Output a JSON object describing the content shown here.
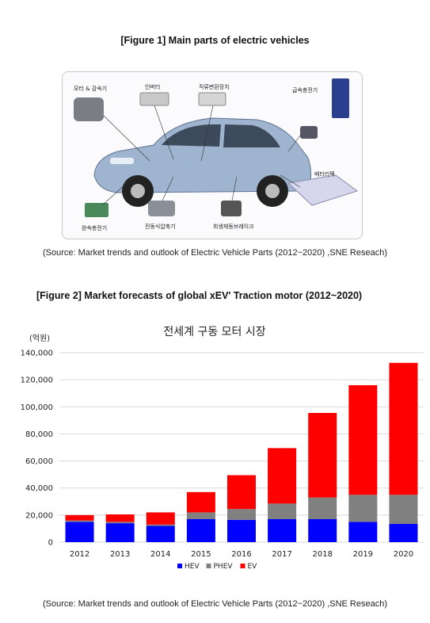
{
  "figure1": {
    "title": "[Figure 1] Main parts of electric vehicles",
    "labels": {
      "motor": "모터 & 감속기",
      "inverter": "인버터",
      "dc_converter": "직류변환장치",
      "fast_charger": "급속충전기",
      "battery_pack": "배터리팩",
      "slow_charger": "완속충전기",
      "compressor": "전동식압축기",
      "regen_brake": "회생제동브레이크"
    },
    "source": "(Source: Market trends and outlook of Electric Vehicle Parts (2012~2020) ,SNE Reseach)"
  },
  "figure2": {
    "title": "[Figure 2] Market forecasts of global xEV' Traction motor (2012~2020)",
    "source": "(Source: Market trends and outlook of Electric Vehicle Parts (2012~2020) ,SNE Reseach)"
  },
  "chart_data": {
    "type": "bar",
    "stacked": true,
    "title": "전세계 구동 모터 시장",
    "ylabel": "(억원)",
    "xlabel": "",
    "ylim": [
      0,
      140000
    ],
    "yticks": [
      "0",
      "20,000",
      "40,000",
      "60,000",
      "80,000",
      "100,000",
      "120,000",
      "140,000"
    ],
    "categories": [
      "2012",
      "2013",
      "2014",
      "2015",
      "2016",
      "2017",
      "2018",
      "2019",
      "2020"
    ],
    "series": [
      {
        "name": "HEV",
        "color": "#0000ff",
        "values": [
          15000,
          14000,
          12000,
          17000,
          16500,
          17000,
          17000,
          15000,
          13500
        ]
      },
      {
        "name": "PHEV",
        "color": "#808080",
        "values": [
          1000,
          1000,
          1000,
          5000,
          8000,
          11500,
          16000,
          20000,
          21500
        ]
      },
      {
        "name": "EV",
        "color": "#ff0000",
        "values": [
          4000,
          5500,
          9000,
          15000,
          25000,
          41000,
          62500,
          81000,
          97500
        ]
      }
    ],
    "grid": true,
    "legend_position": "bottom"
  }
}
